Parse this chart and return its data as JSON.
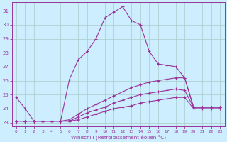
{
  "xlabel": "Windchill (Refroidissement éolien,°C)",
  "background_color": "#cceeff",
  "grid_color": "#aacccc",
  "line_color": "#993399",
  "x": [
    0,
    1,
    2,
    3,
    4,
    5,
    6,
    7,
    8,
    9,
    10,
    11,
    12,
    13,
    14,
    15,
    16,
    17,
    18,
    19,
    20,
    21,
    22,
    23
  ],
  "ylim": [
    22.7,
    31.6
  ],
  "yticks": [
    23,
    24,
    25,
    26,
    27,
    28,
    29,
    30,
    31
  ],
  "line1": [
    24.8,
    24.0,
    23.1,
    23.1,
    23.1,
    23.1,
    26.1,
    27.5,
    28.1,
    29.0,
    30.5,
    30.9,
    31.3,
    30.3,
    30.0,
    28.1,
    27.2,
    27.1,
    27.0,
    26.2,
    24.1,
    24.1,
    24.1,
    24.1
  ],
  "line2": [
    23.1,
    23.1,
    23.1,
    23.1,
    23.1,
    23.1,
    23.2,
    23.6,
    24.0,
    24.3,
    24.6,
    24.9,
    25.2,
    25.5,
    25.7,
    25.9,
    26.0,
    26.1,
    26.2,
    26.2,
    24.1,
    24.1,
    24.1,
    24.1
  ],
  "line3": [
    23.1,
    23.1,
    23.1,
    23.1,
    23.1,
    23.1,
    23.1,
    23.4,
    23.7,
    23.9,
    24.1,
    24.4,
    24.6,
    24.8,
    25.0,
    25.1,
    25.2,
    25.3,
    25.4,
    25.3,
    24.1,
    24.1,
    24.1,
    24.1
  ],
  "line4": [
    23.1,
    23.1,
    23.1,
    23.1,
    23.1,
    23.1,
    23.1,
    23.2,
    23.4,
    23.6,
    23.8,
    24.0,
    24.1,
    24.2,
    24.4,
    24.5,
    24.6,
    24.7,
    24.8,
    24.8,
    24.0,
    24.0,
    24.0,
    24.0
  ]
}
